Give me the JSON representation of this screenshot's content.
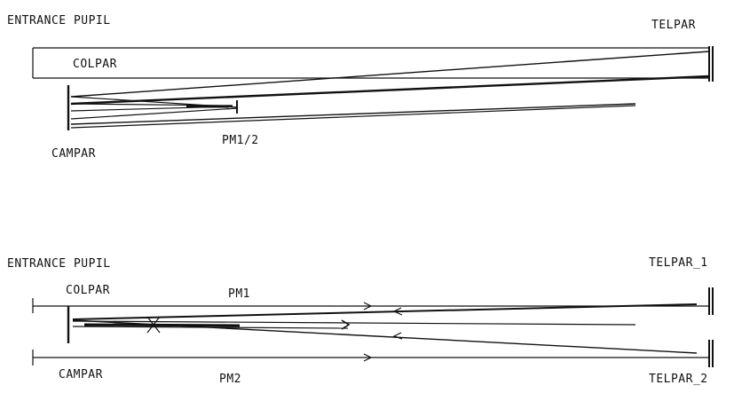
{
  "colors": {
    "ink": "#111111",
    "background": "#ffffff"
  },
  "top": {
    "entrance_pupil": "ENTRANCE PUPIL",
    "telpar": "TELPAR",
    "colpar": "COLPAR",
    "campar": "CAMPAR",
    "pm": "PM1/2"
  },
  "bottom": {
    "entrance_pupil": "ENTRANCE PUPIL",
    "telpar_1": "TELPAR_1",
    "telpar_2": "TELPAR_2",
    "colpar": "COLPAR",
    "campar": "CAMPAR",
    "pm1": "PM1",
    "pm2": "PM2"
  }
}
